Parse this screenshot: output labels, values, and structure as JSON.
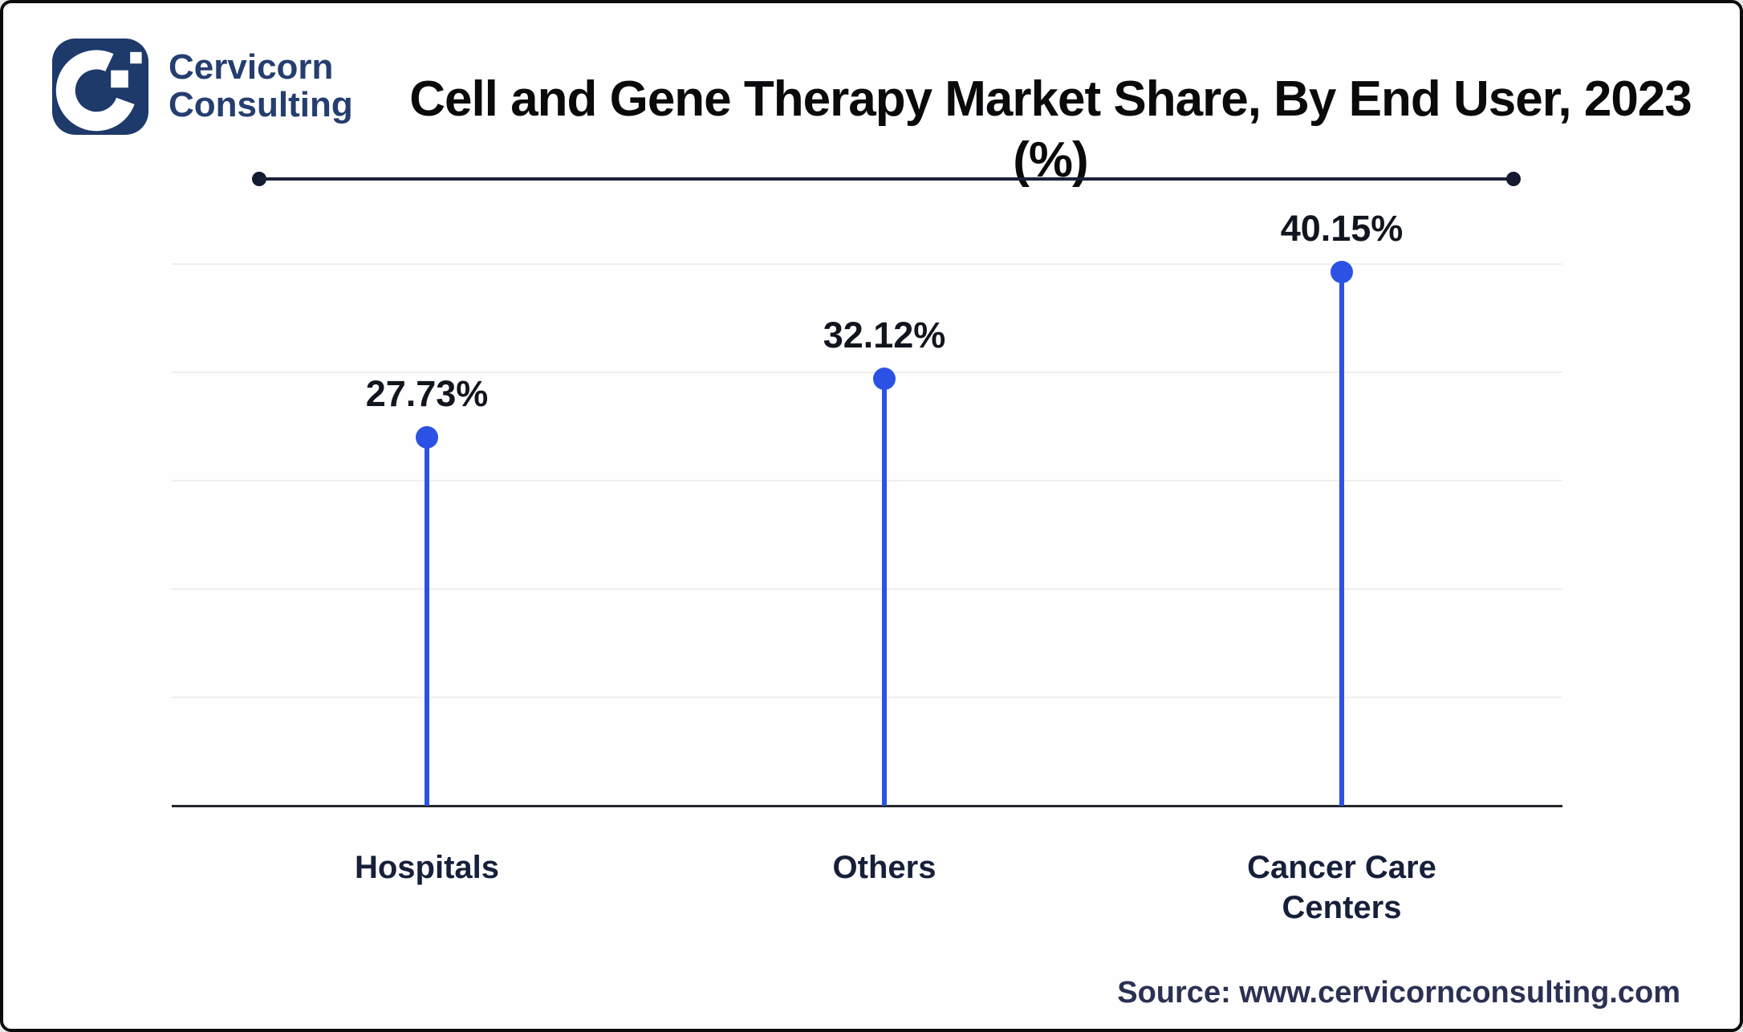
{
  "brand": {
    "logo_icon": "cervicorn-c-logo",
    "name_line1": "Cervicorn",
    "name_line2": "Consulting"
  },
  "header": {
    "title": "Cell and Gene Therapy Market Share, By End User, 2023 (%)"
  },
  "chart_data": {
    "type": "lollipop",
    "title": "Cell and Gene Therapy Market Share, By End User, 2023 (%)",
    "categories": [
      "Hospitals",
      "Others",
      "Cancer Care Centers"
    ],
    "values": [
      27.73,
      32.12,
      40.15
    ],
    "value_labels": [
      "27.73%",
      "32.12%",
      "40.15%"
    ],
    "unit": "%",
    "xlabel": "",
    "ylabel": "",
    "ylim": [
      0,
      40.15
    ],
    "grid": "horizontal-light",
    "gridline_count": 5,
    "legend_position": "none",
    "marker_color": "#2b52e4"
  },
  "footer": {
    "source": "Source: www.cervicornconsulting.com"
  },
  "colors": {
    "accent_blue": "#2b52e4",
    "logo_navy": "#1e3a6a",
    "brand_text_navy": "#253e70",
    "title_text": "#0a0a0c",
    "divider_navy": "#1b2136",
    "gridline_gray": "#efeff0",
    "axis_dark": "#24272c",
    "value_label_text": "#11151f",
    "category_label_text": "#17203a",
    "source_text_navy": "#2b3152",
    "background": "#fefefe",
    "border_black": "#0b0b0d"
  }
}
